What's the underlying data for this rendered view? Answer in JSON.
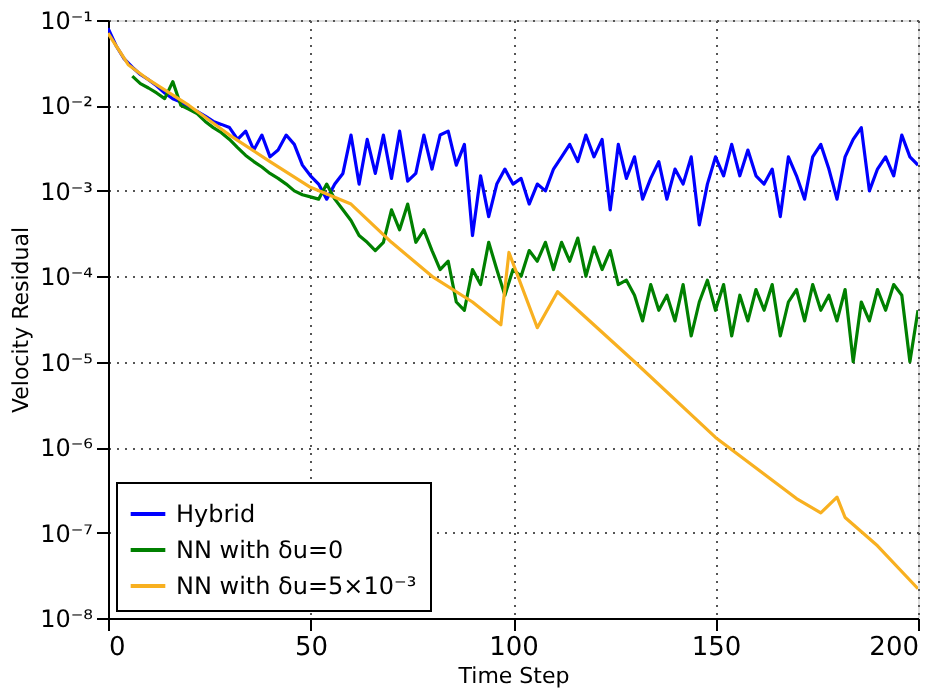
{
  "chart_data": {
    "type": "line",
    "xlabel": "Time Step",
    "ylabel": "Velocity Residual",
    "xlim": [
      0,
      200
    ],
    "xticks": [
      0,
      50,
      100,
      150,
      200
    ],
    "ylim": [
      1e-08,
      0.1
    ],
    "yticks": [
      {
        "value": 1e-08,
        "label": "10⁻⁸"
      },
      {
        "value": 1e-07,
        "label": "10⁻⁷"
      },
      {
        "value": 1e-06,
        "label": "10⁻⁶"
      },
      {
        "value": 1e-05,
        "label": "10⁻⁵"
      },
      {
        "value": 0.0001,
        "label": "10⁻⁴"
      },
      {
        "value": 0.001,
        "label": "10⁻³"
      },
      {
        "value": 0.01,
        "label": "10⁻²"
      },
      {
        "value": 0.1,
        "label": "10⁻¹"
      }
    ],
    "log": "y",
    "grid": true,
    "legend": "bottom left",
    "marker": "none",
    "line_style": "solid",
    "series": [
      {
        "name": "Hybrid",
        "color": "#0000ff",
        "x": [
          0,
          2,
          4,
          6,
          8,
          10,
          12,
          14,
          16,
          18,
          20,
          22,
          24,
          26,
          28,
          30,
          32,
          34,
          36,
          38,
          40,
          42,
          44,
          46,
          48,
          50,
          52,
          54,
          56,
          58,
          60,
          62,
          64,
          66,
          68,
          70,
          72,
          74,
          76,
          78,
          80,
          82,
          84,
          86,
          88,
          90,
          92,
          94,
          96,
          98,
          100,
          102,
          104,
          106,
          108,
          110,
          112,
          114,
          116,
          118,
          120,
          122,
          124,
          126,
          128,
          130,
          132,
          134,
          136,
          138,
          140,
          142,
          144,
          146,
          148,
          150,
          152,
          154,
          156,
          158,
          160,
          162,
          164,
          166,
          168,
          170,
          172,
          174,
          176,
          178,
          180,
          182,
          184,
          186,
          188,
          190,
          192,
          194,
          196,
          198,
          200
        ],
        "values": [
          0.08,
          0.05,
          0.035,
          0.028,
          0.023,
          0.02,
          0.017,
          0.014,
          0.012,
          0.011,
          0.0095,
          0.0085,
          0.0075,
          0.0065,
          0.006,
          0.0055,
          0.004,
          0.005,
          0.003,
          0.0045,
          0.0025,
          0.003,
          0.0045,
          0.0035,
          0.002,
          0.0015,
          0.0012,
          0.0008,
          0.0012,
          0.0016,
          0.0045,
          0.0012,
          0.004,
          0.0016,
          0.0045,
          0.0014,
          0.005,
          0.0013,
          0.0016,
          0.0045,
          0.0018,
          0.0045,
          0.005,
          0.002,
          0.0035,
          0.0003,
          0.0015,
          0.0005,
          0.0012,
          0.0018,
          0.0012,
          0.0014,
          0.0007,
          0.0012,
          0.001,
          0.0018,
          0.0025,
          0.0035,
          0.0022,
          0.0045,
          0.0025,
          0.004,
          0.0006,
          0.0035,
          0.0014,
          0.0025,
          0.0008,
          0.0014,
          0.0022,
          0.0008,
          0.0018,
          0.0012,
          0.0025,
          0.0004,
          0.0012,
          0.0025,
          0.0015,
          0.0035,
          0.0015,
          0.003,
          0.0015,
          0.0012,
          0.0018,
          0.0005,
          0.0025,
          0.0015,
          0.0008,
          0.0025,
          0.0035,
          0.0018,
          0.0008,
          0.0025,
          0.004,
          0.0055,
          0.001,
          0.0018,
          0.0025,
          0.0015,
          0.0045,
          0.0025,
          0.002
        ]
      },
      {
        "name": "NN  with δu=0",
        "color": "#008000",
        "x": [
          6,
          8,
          10,
          12,
          14,
          16,
          18,
          20,
          22,
          24,
          26,
          28,
          30,
          32,
          34,
          36,
          38,
          40,
          42,
          44,
          46,
          48,
          50,
          52,
          54,
          56,
          58,
          60,
          62,
          64,
          66,
          68,
          70,
          72,
          74,
          76,
          78,
          80,
          82,
          84,
          86,
          88,
          90,
          92,
          94,
          96,
          98,
          100,
          102,
          104,
          106,
          108,
          110,
          112,
          114,
          116,
          118,
          120,
          122,
          124,
          126,
          128,
          130,
          132,
          134,
          136,
          138,
          140,
          142,
          144,
          146,
          148,
          150,
          152,
          154,
          156,
          158,
          160,
          162,
          164,
          166,
          168,
          170,
          172,
          174,
          176,
          178,
          180,
          182,
          184,
          186,
          188,
          190,
          192,
          194,
          196,
          198,
          200
        ],
        "values": [
          0.022,
          0.018,
          0.016,
          0.014,
          0.012,
          0.019,
          0.01,
          0.009,
          0.008,
          0.0065,
          0.0055,
          0.0048,
          0.004,
          0.0032,
          0.0026,
          0.0022,
          0.0019,
          0.0016,
          0.0014,
          0.0012,
          0.001,
          0.0009,
          0.00085,
          0.0008,
          0.0012,
          0.0008,
          0.0006,
          0.00045,
          0.0003,
          0.00025,
          0.0002,
          0.00025,
          0.0006,
          0.00035,
          0.0007,
          0.00025,
          0.00035,
          0.0002,
          0.00012,
          0.00015,
          5e-05,
          4e-05,
          0.00012,
          8e-05,
          0.00025,
          0.00012,
          6e-05,
          0.00012,
          0.0001,
          0.0002,
          0.00015,
          0.00025,
          0.00012,
          0.00025,
          0.00015,
          0.00028,
          0.0001,
          0.00022,
          0.00012,
          0.0002,
          8e-05,
          9e-05,
          6e-05,
          3e-05,
          8e-05,
          4e-05,
          6e-05,
          3e-05,
          8e-05,
          2e-05,
          5e-05,
          9e-05,
          4e-05,
          8e-05,
          2e-05,
          6e-05,
          3e-05,
          7e-05,
          4e-05,
          8e-05,
          2e-05,
          5e-05,
          7e-05,
          3e-05,
          8e-05,
          4e-05,
          6e-05,
          3e-05,
          7e-05,
          1e-05,
          5e-05,
          3e-05,
          7e-05,
          4e-05,
          8e-05,
          6e-05,
          1e-05,
          4e-05
        ]
      },
      {
        "name": "NN with δu=5×10⁻³",
        "color": "#f8b020",
        "x": [
          0,
          5,
          10,
          20,
          30,
          40,
          50,
          60,
          70,
          80,
          90,
          97,
          99,
          106,
          111,
          130,
          150,
          170,
          176,
          180,
          182,
          190,
          200
        ],
        "values": [
          0.07,
          0.03,
          0.02,
          0.01,
          0.0045,
          0.0022,
          0.0011,
          0.0007,
          0.00025,
          0.0001,
          5e-05,
          2.7e-05,
          0.00019,
          2.5e-05,
          6.6e-05,
          1e-05,
          1.3e-06,
          2.5e-07,
          1.7e-07,
          2.6e-07,
          1.5e-07,
          7e-08,
          2.2e-08
        ]
      }
    ]
  }
}
